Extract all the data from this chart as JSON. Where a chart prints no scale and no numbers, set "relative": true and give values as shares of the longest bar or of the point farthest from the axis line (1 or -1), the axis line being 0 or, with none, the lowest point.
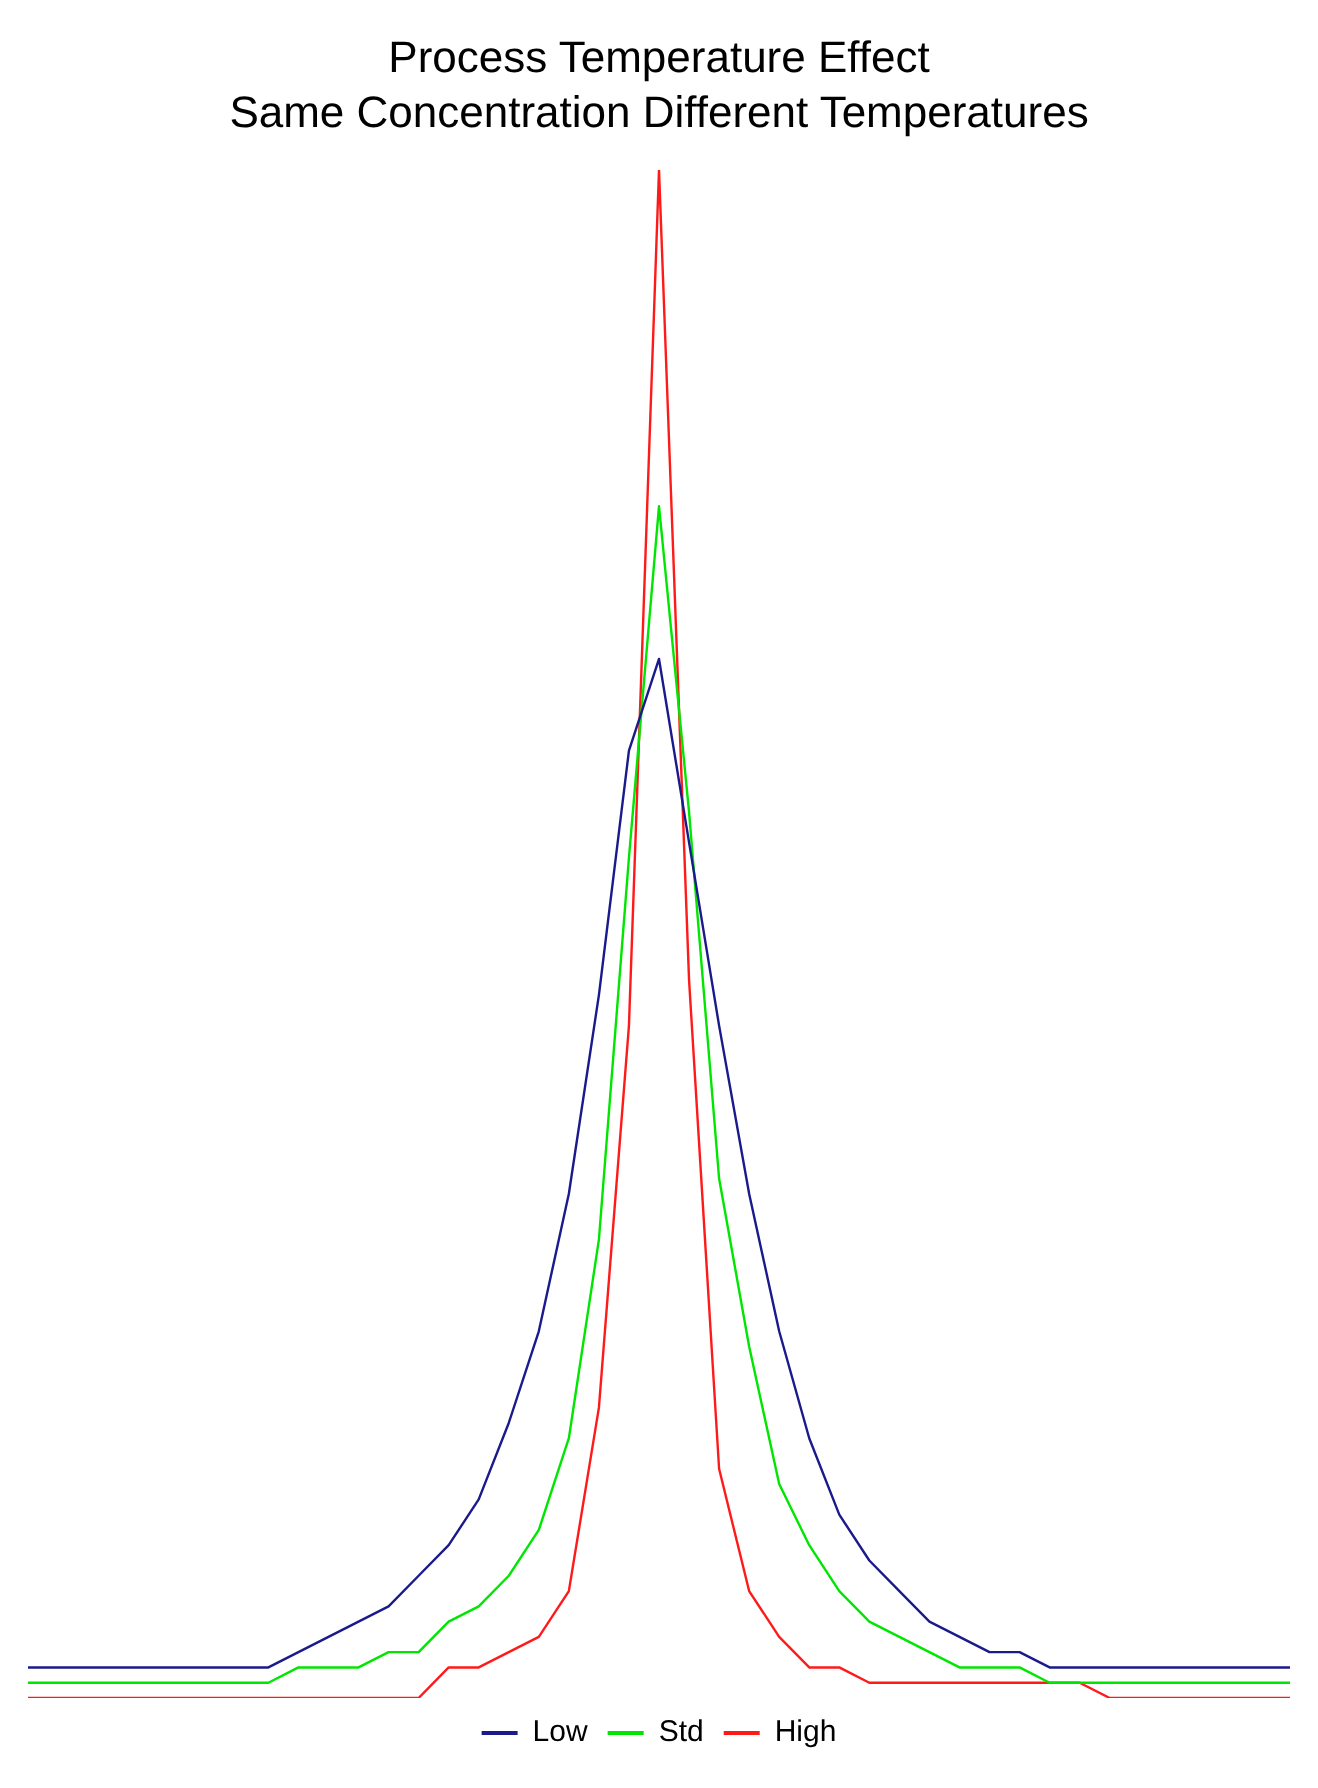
{
  "chart_data": {
    "type": "line",
    "title": [
      "Process Temperature Effect",
      "Same Concentration Different Temperatures"
    ],
    "relative": true,
    "tick_labels": false,
    "legend": "bottom",
    "categories": [
      null,
      null,
      null,
      null,
      null,
      null,
      null,
      null,
      null,
      null,
      null,
      null,
      null,
      null,
      null,
      null,
      null,
      null,
      null,
      null,
      null,
      null,
      null,
      null,
      null,
      null,
      null,
      null,
      null,
      null,
      null,
      null,
      null,
      null,
      null,
      null,
      null,
      null,
      null,
      null,
      null,
      null,
      null
    ],
    "series": [
      {
        "name": "Low",
        "color": "#1a1a8c",
        "values": [
          0.02,
          0.02,
          0.02,
          0.02,
          0.02,
          0.02,
          0.02,
          0.02,
          0.02,
          0.03,
          0.04,
          0.05,
          0.06,
          0.08,
          0.1,
          0.13,
          0.18,
          0.24,
          0.33,
          0.46,
          0.62,
          0.68,
          0.56,
          0.44,
          0.33,
          0.24,
          0.17,
          0.12,
          0.09,
          0.07,
          0.05,
          0.04,
          0.03,
          0.03,
          0.02,
          0.02,
          0.02,
          0.02,
          0.02,
          0.02,
          0.02,
          0.02,
          0.02
        ]
      },
      {
        "name": "Std",
        "color": "#00e600",
        "values": [
          0.01,
          0.01,
          0.01,
          0.01,
          0.01,
          0.01,
          0.01,
          0.01,
          0.01,
          0.02,
          0.02,
          0.02,
          0.03,
          0.03,
          0.05,
          0.06,
          0.08,
          0.11,
          0.17,
          0.3,
          0.55,
          0.78,
          0.58,
          0.34,
          0.23,
          0.14,
          0.1,
          0.07,
          0.05,
          0.04,
          0.03,
          0.02,
          0.02,
          0.02,
          0.01,
          0.01,
          0.01,
          0.01,
          0.01,
          0.01,
          0.01,
          0.01,
          0.01
        ]
      },
      {
        "name": "High",
        "color": "#ff1a1a",
        "values": [
          0,
          0,
          0,
          0,
          0,
          0,
          0,
          0,
          0,
          0,
          0,
          0,
          0,
          0,
          0.02,
          0.02,
          0.03,
          0.04,
          0.07,
          0.19,
          0.44,
          1,
          0.47,
          0.15,
          0.07,
          0.04,
          0.02,
          0.02,
          0.01,
          0.01,
          0.01,
          0.01,
          0.01,
          0.01,
          0.01,
          0.01,
          0,
          0,
          0,
          0,
          0,
          0,
          0
        ]
      }
    ]
  }
}
